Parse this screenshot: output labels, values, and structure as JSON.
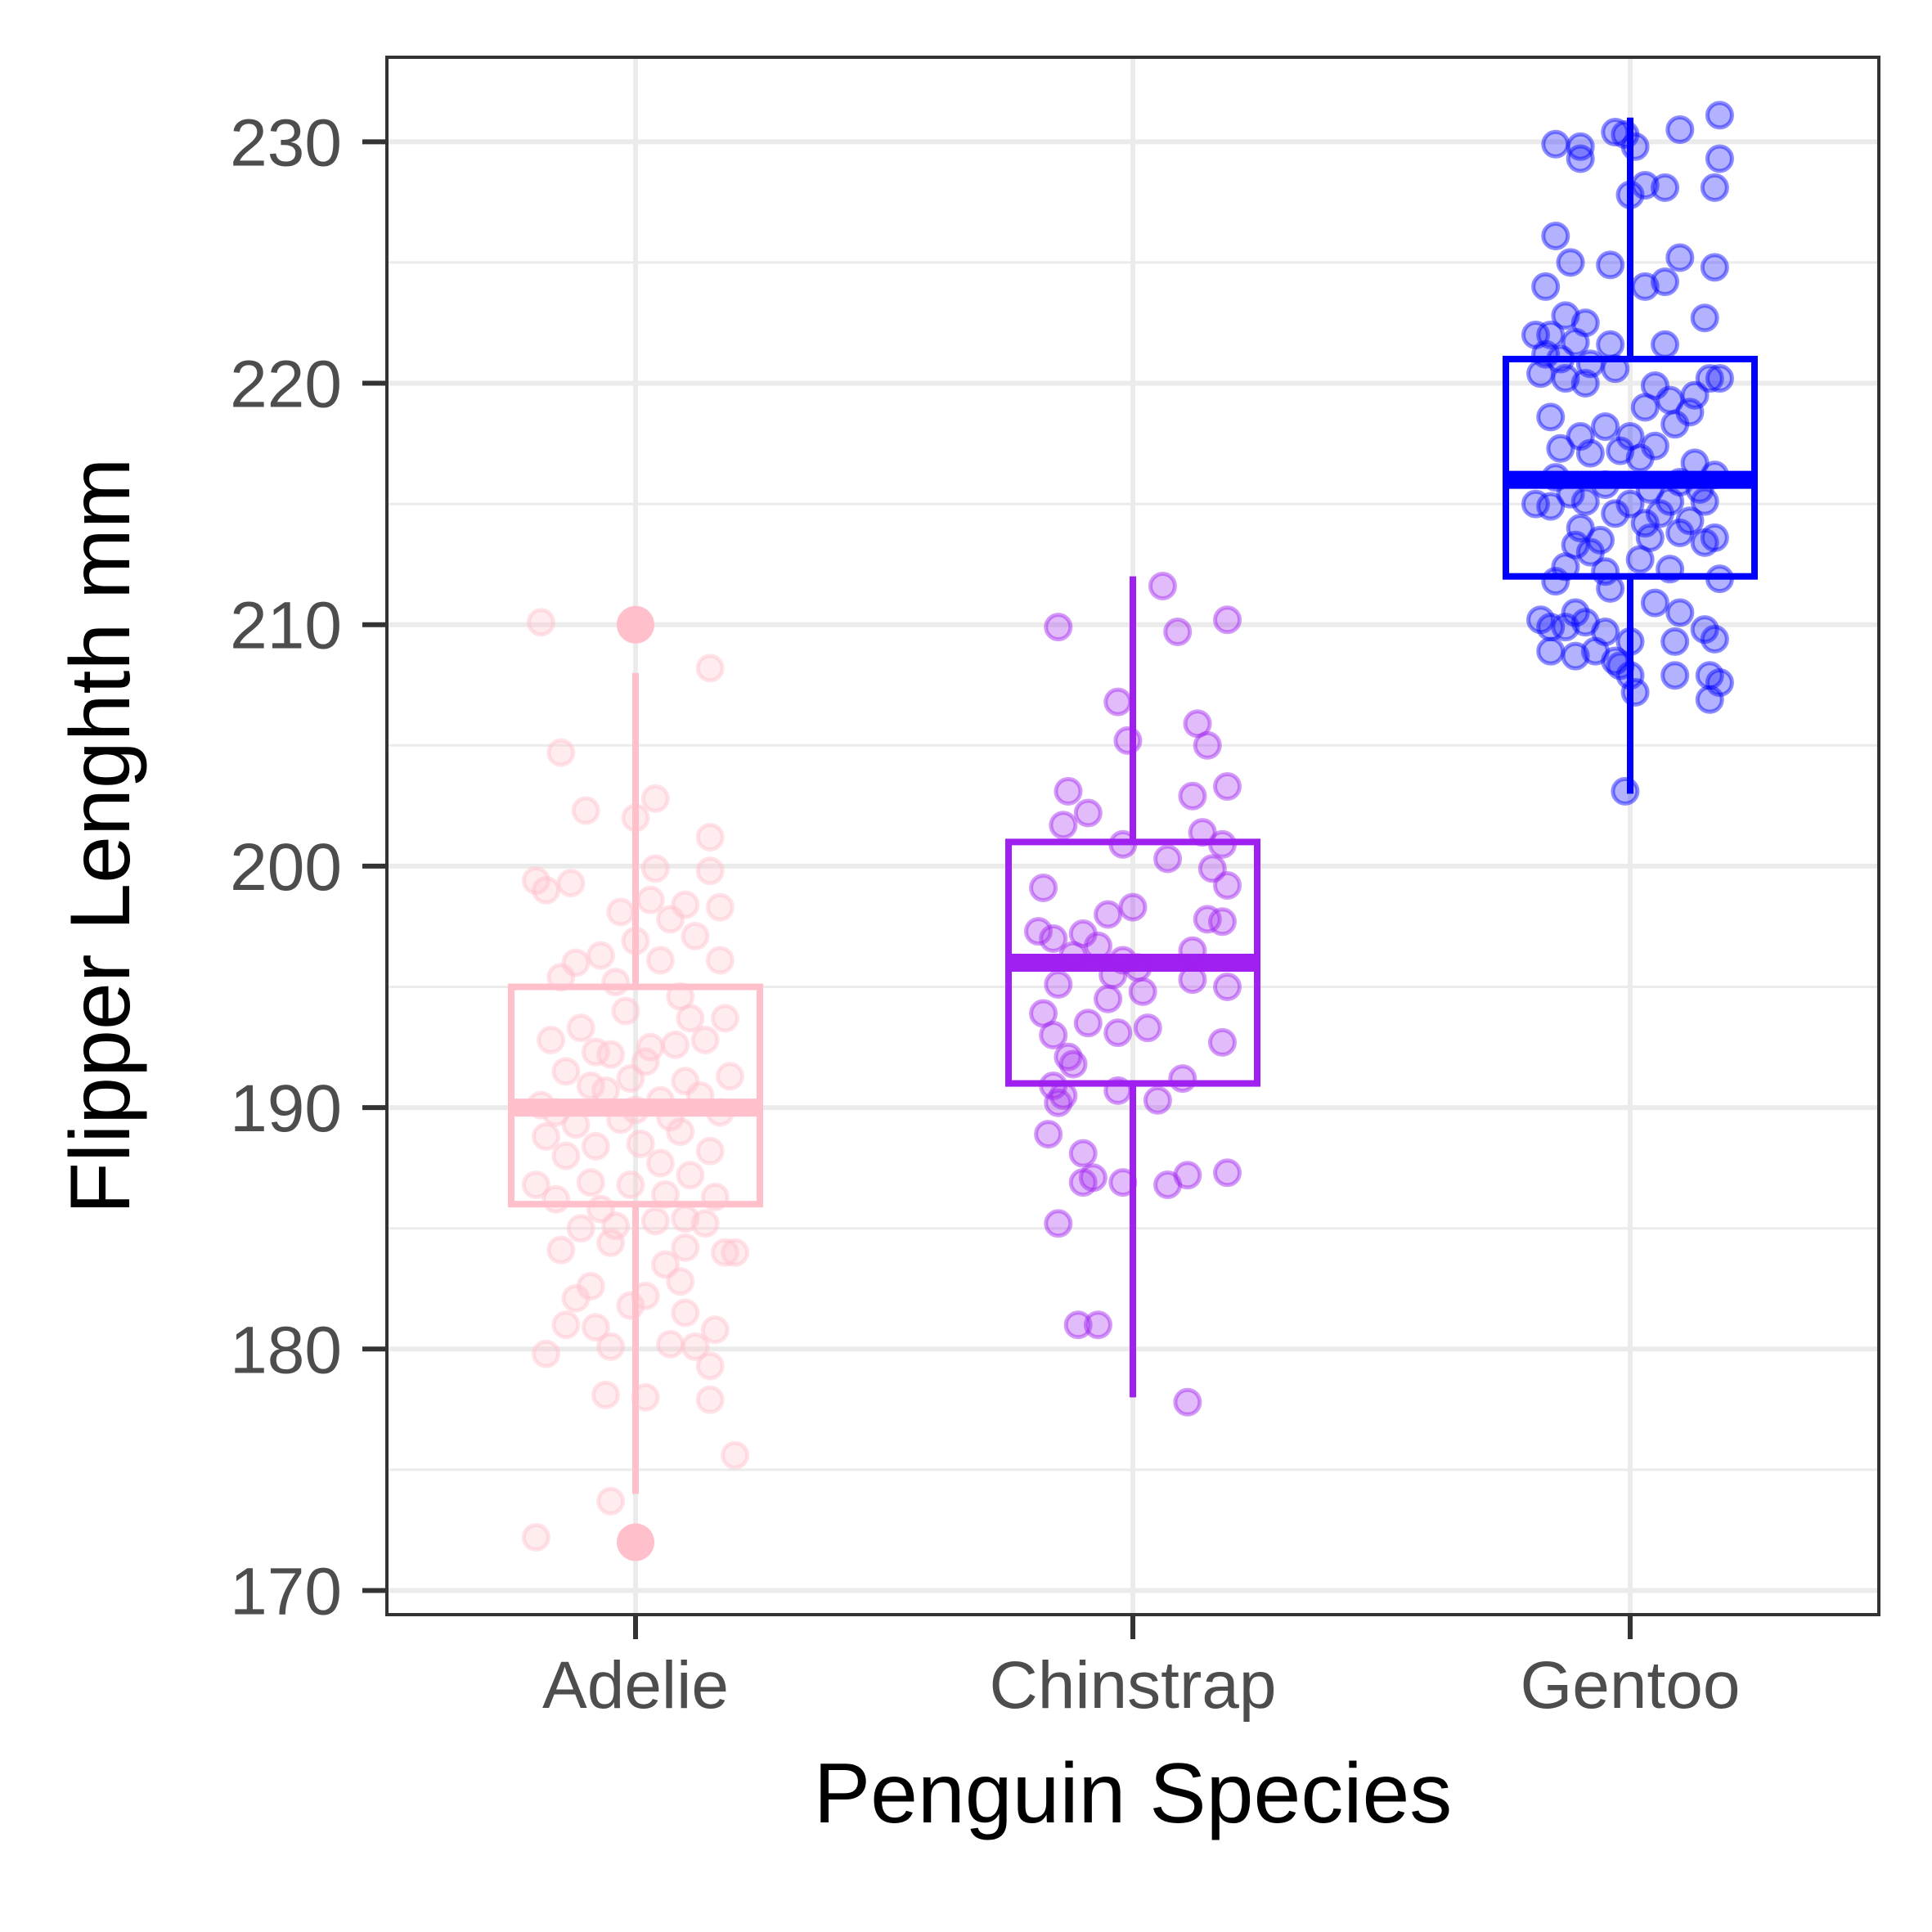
{
  "chart_data": {
    "type": "boxplot",
    "xlabel": "Penguin Species",
    "ylabel": "Flipper Lenghth mm",
    "categories": [
      "Adelie",
      "Chinstrap",
      "Gentoo"
    ],
    "ylim": [
      169,
      233.5
    ],
    "yticks": [
      170,
      180,
      190,
      200,
      210,
      220,
      230
    ],
    "grid": true,
    "legend": "none",
    "colors": {
      "Adelie": "#ffc0cb",
      "Chinstrap": "#a020f0",
      "Gentoo": "#0000ff"
    },
    "boxes": [
      {
        "category": "Adelie",
        "q1": 186,
        "median": 190,
        "q3": 195,
        "whisker_low": 174,
        "whisker_high": 208,
        "outliers": [
          172,
          210
        ]
      },
      {
        "category": "Chinstrap",
        "q1": 191,
        "median": 196,
        "q3": 201,
        "whisker_low": 178,
        "whisker_high": 212,
        "outliers": []
      },
      {
        "category": "Gentoo",
        "q1": 212,
        "median": 216,
        "q3": 221,
        "whisker_low": 203,
        "whisker_high": 231,
        "outliers": []
      }
    ],
    "points": {
      "Adelie": [
        [
          -0.19,
          210.1
        ],
        [
          0.15,
          208.2
        ],
        [
          -0.15,
          204.7
        ],
        [
          -0.1,
          202.3
        ],
        [
          0.04,
          202.8
        ],
        [
          0.0,
          202.0
        ],
        [
          0.15,
          201.2
        ],
        [
          -0.2,
          199.4
        ],
        [
          -0.13,
          199.3
        ],
        [
          0.04,
          199.9
        ],
        [
          0.15,
          199.8
        ],
        [
          -0.18,
          199.0
        ],
        [
          0.17,
          198.3
        ],
        [
          0.03,
          198.6
        ],
        [
          0.07,
          197.8
        ],
        [
          0.12,
          197.1
        ],
        [
          0.1,
          198.4
        ],
        [
          -0.03,
          198.1
        ],
        [
          0.0,
          196.9
        ],
        [
          -0.12,
          196.0
        ],
        [
          -0.07,
          196.3
        ],
        [
          0.05,
          196.1
        ],
        [
          0.17,
          196.1
        ],
        [
          -0.04,
          195.2
        ],
        [
          -0.15,
          195.4
        ],
        [
          0.09,
          194.6
        ],
        [
          -0.02,
          194.0
        ],
        [
          0.11,
          193.7
        ],
        [
          0.18,
          193.7
        ],
        [
          -0.11,
          193.3
        ],
        [
          -0.17,
          192.8
        ],
        [
          0.08,
          192.6
        ],
        [
          -0.08,
          192.3
        ],
        [
          -0.05,
          192.2
        ],
        [
          0.03,
          192.5
        ],
        [
          0.14,
          192.8
        ],
        [
          0.02,
          191.9
        ],
        [
          -0.14,
          191.5
        ],
        [
          -0.01,
          191.2
        ],
        [
          0.1,
          191.1
        ],
        [
          0.19,
          191.3
        ],
        [
          -0.09,
          190.9
        ],
        [
          -0.06,
          190.7
        ],
        [
          0.05,
          190.3
        ],
        [
          0.13,
          190.5
        ],
        [
          -0.19,
          190.1
        ],
        [
          -0.16,
          189.8
        ],
        [
          0.0,
          189.9
        ],
        [
          0.07,
          189.6
        ],
        [
          -0.03,
          189.5
        ],
        [
          0.17,
          189.8
        ],
        [
          -0.12,
          189.3
        ],
        [
          0.09,
          189.0
        ],
        [
          -0.18,
          188.8
        ],
        [
          -0.08,
          188.4
        ],
        [
          0.01,
          188.5
        ],
        [
          0.15,
          188.2
        ],
        [
          -0.14,
          188.0
        ],
        [
          0.05,
          187.7
        ],
        [
          0.11,
          187.2
        ],
        [
          -0.2,
          186.8
        ],
        [
          -0.09,
          186.9
        ],
        [
          -0.01,
          186.8
        ],
        [
          0.06,
          186.4
        ],
        [
          -0.16,
          186.2
        ],
        [
          0.16,
          186.3
        ],
        [
          -0.07,
          185.8
        ],
        [
          0.1,
          185.4
        ],
        [
          -0.11,
          185.0
        ],
        [
          -0.04,
          185.1
        ],
        [
          0.04,
          185.3
        ],
        [
          0.14,
          185.2
        ],
        [
          0.18,
          184.0
        ],
        [
          -0.15,
          184.1
        ],
        [
          0.1,
          184.2
        ],
        [
          -0.05,
          184.4
        ],
        [
          0.2,
          184.0
        ],
        [
          0.06,
          183.5
        ],
        [
          -0.09,
          182.6
        ],
        [
          0.02,
          182.2
        ],
        [
          0.09,
          182.8
        ],
        [
          -0.12,
          182.1
        ],
        [
          -0.01,
          181.8
        ],
        [
          0.1,
          181.5
        ],
        [
          -0.14,
          181.0
        ],
        [
          -0.08,
          180.9
        ],
        [
          0.16,
          180.8
        ],
        [
          0.07,
          180.2
        ],
        [
          -0.18,
          179.8
        ],
        [
          -0.05,
          180.1
        ],
        [
          0.12,
          180.1
        ],
        [
          0.15,
          179.3
        ],
        [
          -0.06,
          178.1
        ],
        [
          0.15,
          177.9
        ],
        [
          0.02,
          178.0
        ],
        [
          0.2,
          175.6
        ],
        [
          -0.05,
          173.7
        ],
        [
          -0.2,
          172.2
        ]
      ],
      "Chinstrap": [
        [
          0.06,
          211.6
        ],
        [
          -0.15,
          209.9
        ],
        [
          0.09,
          209.7
        ],
        [
          0.19,
          210.2
        ],
        [
          -0.03,
          206.8
        ],
        [
          0.13,
          205.9
        ],
        [
          -0.01,
          205.2
        ],
        [
          0.15,
          205.0
        ],
        [
          -0.13,
          203.1
        ],
        [
          0.12,
          202.9
        ],
        [
          0.19,
          203.3
        ],
        [
          -0.09,
          202.2
        ],
        [
          -0.14,
          201.7
        ],
        [
          0.14,
          201.4
        ],
        [
          -0.02,
          200.9
        ],
        [
          0.18,
          200.9
        ],
        [
          0.07,
          200.3
        ],
        [
          0.16,
          199.9
        ],
        [
          0.19,
          199.2
        ],
        [
          -0.18,
          199.1
        ],
        [
          -0.05,
          198.0
        ],
        [
          0.0,
          198.3
        ],
        [
          0.15,
          197.8
        ],
        [
          0.18,
          197.7
        ],
        [
          -0.19,
          197.3
        ],
        [
          -0.1,
          197.2
        ],
        [
          -0.16,
          197.0
        ],
        [
          -0.07,
          196.7
        ],
        [
          -0.12,
          196.3
        ],
        [
          -0.02,
          196.1
        ],
        [
          0.01,
          195.8
        ],
        [
          0.12,
          196.5
        ],
        [
          -0.04,
          195.5
        ],
        [
          -0.15,
          195.1
        ],
        [
          0.02,
          194.8
        ],
        [
          0.12,
          195.3
        ],
        [
          0.19,
          195.0
        ],
        [
          -0.05,
          194.5
        ],
        [
          -0.18,
          193.9
        ],
        [
          -0.09,
          193.5
        ],
        [
          -0.03,
          193.1
        ],
        [
          0.03,
          193.3
        ],
        [
          -0.16,
          193.0
        ],
        [
          0.18,
          192.7
        ],
        [
          -0.13,
          192.1
        ],
        [
          -0.12,
          191.8
        ],
        [
          0.1,
          191.2
        ],
        [
          -0.16,
          190.9
        ],
        [
          -0.14,
          190.5
        ],
        [
          -0.15,
          190.2
        ],
        [
          -0.03,
          190.7
        ],
        [
          0.05,
          190.3
        ],
        [
          -0.17,
          188.9
        ],
        [
          -0.1,
          188.1
        ],
        [
          -0.08,
          187.1
        ],
        [
          -0.1,
          186.9
        ],
        [
          -0.02,
          186.9
        ],
        [
          0.07,
          186.8
        ],
        [
          0.11,
          187.2
        ],
        [
          0.19,
          187.3
        ],
        [
          -0.15,
          185.2
        ],
        [
          -0.11,
          181.0
        ],
        [
          -0.07,
          181.0
        ],
        [
          0.11,
          177.8
        ]
      ],
      "Gentoo": [
        [
          -0.15,
          229.9
        ],
        [
          -0.1,
          229.8
        ],
        [
          -0.1,
          229.3
        ],
        [
          -0.03,
          230.4
        ],
        [
          -0.01,
          230.3
        ],
        [
          0.01,
          229.8
        ],
        [
          0.1,
          230.5
        ],
        [
          0.18,
          231.1
        ],
        [
          0.18,
          229.3
        ],
        [
          0.03,
          228.2
        ],
        [
          0.0,
          227.8
        ],
        [
          0.07,
          228.1
        ],
        [
          0.17,
          228.1
        ],
        [
          -0.15,
          226.1
        ],
        [
          -0.12,
          225.0
        ],
        [
          -0.04,
          224.9
        ],
        [
          0.1,
          225.2
        ],
        [
          0.17,
          224.8
        ],
        [
          0.03,
          224.0
        ],
        [
          0.07,
          224.2
        ],
        [
          -0.17,
          224.0
        ],
        [
          -0.13,
          222.8
        ],
        [
          -0.09,
          222.5
        ],
        [
          -0.19,
          222.0
        ],
        [
          -0.16,
          222.0
        ],
        [
          -0.11,
          221.7
        ],
        [
          -0.04,
          221.6
        ],
        [
          0.07,
          221.6
        ],
        [
          0.15,
          222.7
        ],
        [
          -0.17,
          221.2
        ],
        [
          -0.14,
          221.0
        ],
        [
          -0.08,
          220.8
        ],
        [
          -0.18,
          220.4
        ],
        [
          -0.13,
          220.2
        ],
        [
          -0.09,
          220.0
        ],
        [
          -0.03,
          220.6
        ],
        [
          0.05,
          219.9
        ],
        [
          0.16,
          220.2
        ],
        [
          0.18,
          220.2
        ],
        [
          0.13,
          219.5
        ],
        [
          0.08,
          219.3
        ],
        [
          0.03,
          219.0
        ],
        [
          -0.16,
          218.6
        ],
        [
          -0.05,
          218.2
        ],
        [
          0.09,
          218.3
        ],
        [
          0.12,
          218.8
        ],
        [
          -0.1,
          217.8
        ],
        [
          0.0,
          217.8
        ],
        [
          0.05,
          217.4
        ],
        [
          -0.14,
          217.3
        ],
        [
          -0.08,
          217.1
        ],
        [
          -0.02,
          217.2
        ],
        [
          0.02,
          216.9
        ],
        [
          0.13,
          216.7
        ],
        [
          0.17,
          216.2
        ],
        [
          -0.15,
          216.1
        ],
        [
          -0.05,
          215.8
        ],
        [
          0.04,
          215.6
        ],
        [
          0.1,
          215.9
        ],
        [
          0.14,
          215.6
        ],
        [
          -0.12,
          215.4
        ],
        [
          -0.09,
          215.1
        ],
        [
          0.0,
          215.0
        ],
        [
          0.08,
          215.1
        ],
        [
          0.15,
          215.1
        ],
        [
          -0.16,
          214.9
        ],
        [
          -0.19,
          215.0
        ],
        [
          -0.03,
          214.6
        ],
        [
          0.06,
          214.6
        ],
        [
          0.12,
          214.3
        ],
        [
          -0.1,
          214.0
        ],
        [
          0.03,
          214.2
        ],
        [
          -0.06,
          213.5
        ],
        [
          -0.11,
          213.3
        ],
        [
          0.04,
          213.6
        ],
        [
          0.1,
          213.8
        ],
        [
          0.17,
          213.6
        ],
        [
          -0.08,
          213.0
        ],
        [
          0.02,
          212.7
        ],
        [
          0.15,
          213.4
        ],
        [
          -0.13,
          212.4
        ],
        [
          -0.05,
          212.2
        ],
        [
          0.08,
          212.3
        ],
        [
          -0.15,
          211.8
        ],
        [
          0.18,
          211.9
        ],
        [
          -0.04,
          211.5
        ],
        [
          0.05,
          210.9
        ],
        [
          -0.11,
          210.5
        ],
        [
          0.1,
          210.5
        ],
        [
          0.15,
          209.8
        ],
        [
          -0.18,
          210.2
        ],
        [
          -0.16,
          209.9
        ],
        [
          -0.09,
          210.1
        ],
        [
          -0.13,
          209.9
        ],
        [
          -0.05,
          209.7
        ],
        [
          0.0,
          209.3
        ],
        [
          0.09,
          209.3
        ],
        [
          0.17,
          209.4
        ],
        [
          -0.16,
          208.9
        ],
        [
          -0.11,
          208.7
        ],
        [
          -0.07,
          208.9
        ],
        [
          -0.03,
          208.5
        ],
        [
          -0.02,
          208.3
        ],
        [
          0.0,
          207.9
        ],
        [
          0.09,
          207.9
        ],
        [
          0.16,
          207.9
        ],
        [
          0.18,
          207.6
        ],
        [
          0.01,
          207.2
        ],
        [
          0.16,
          206.9
        ],
        [
          -0.01,
          203.1
        ]
      ]
    }
  }
}
